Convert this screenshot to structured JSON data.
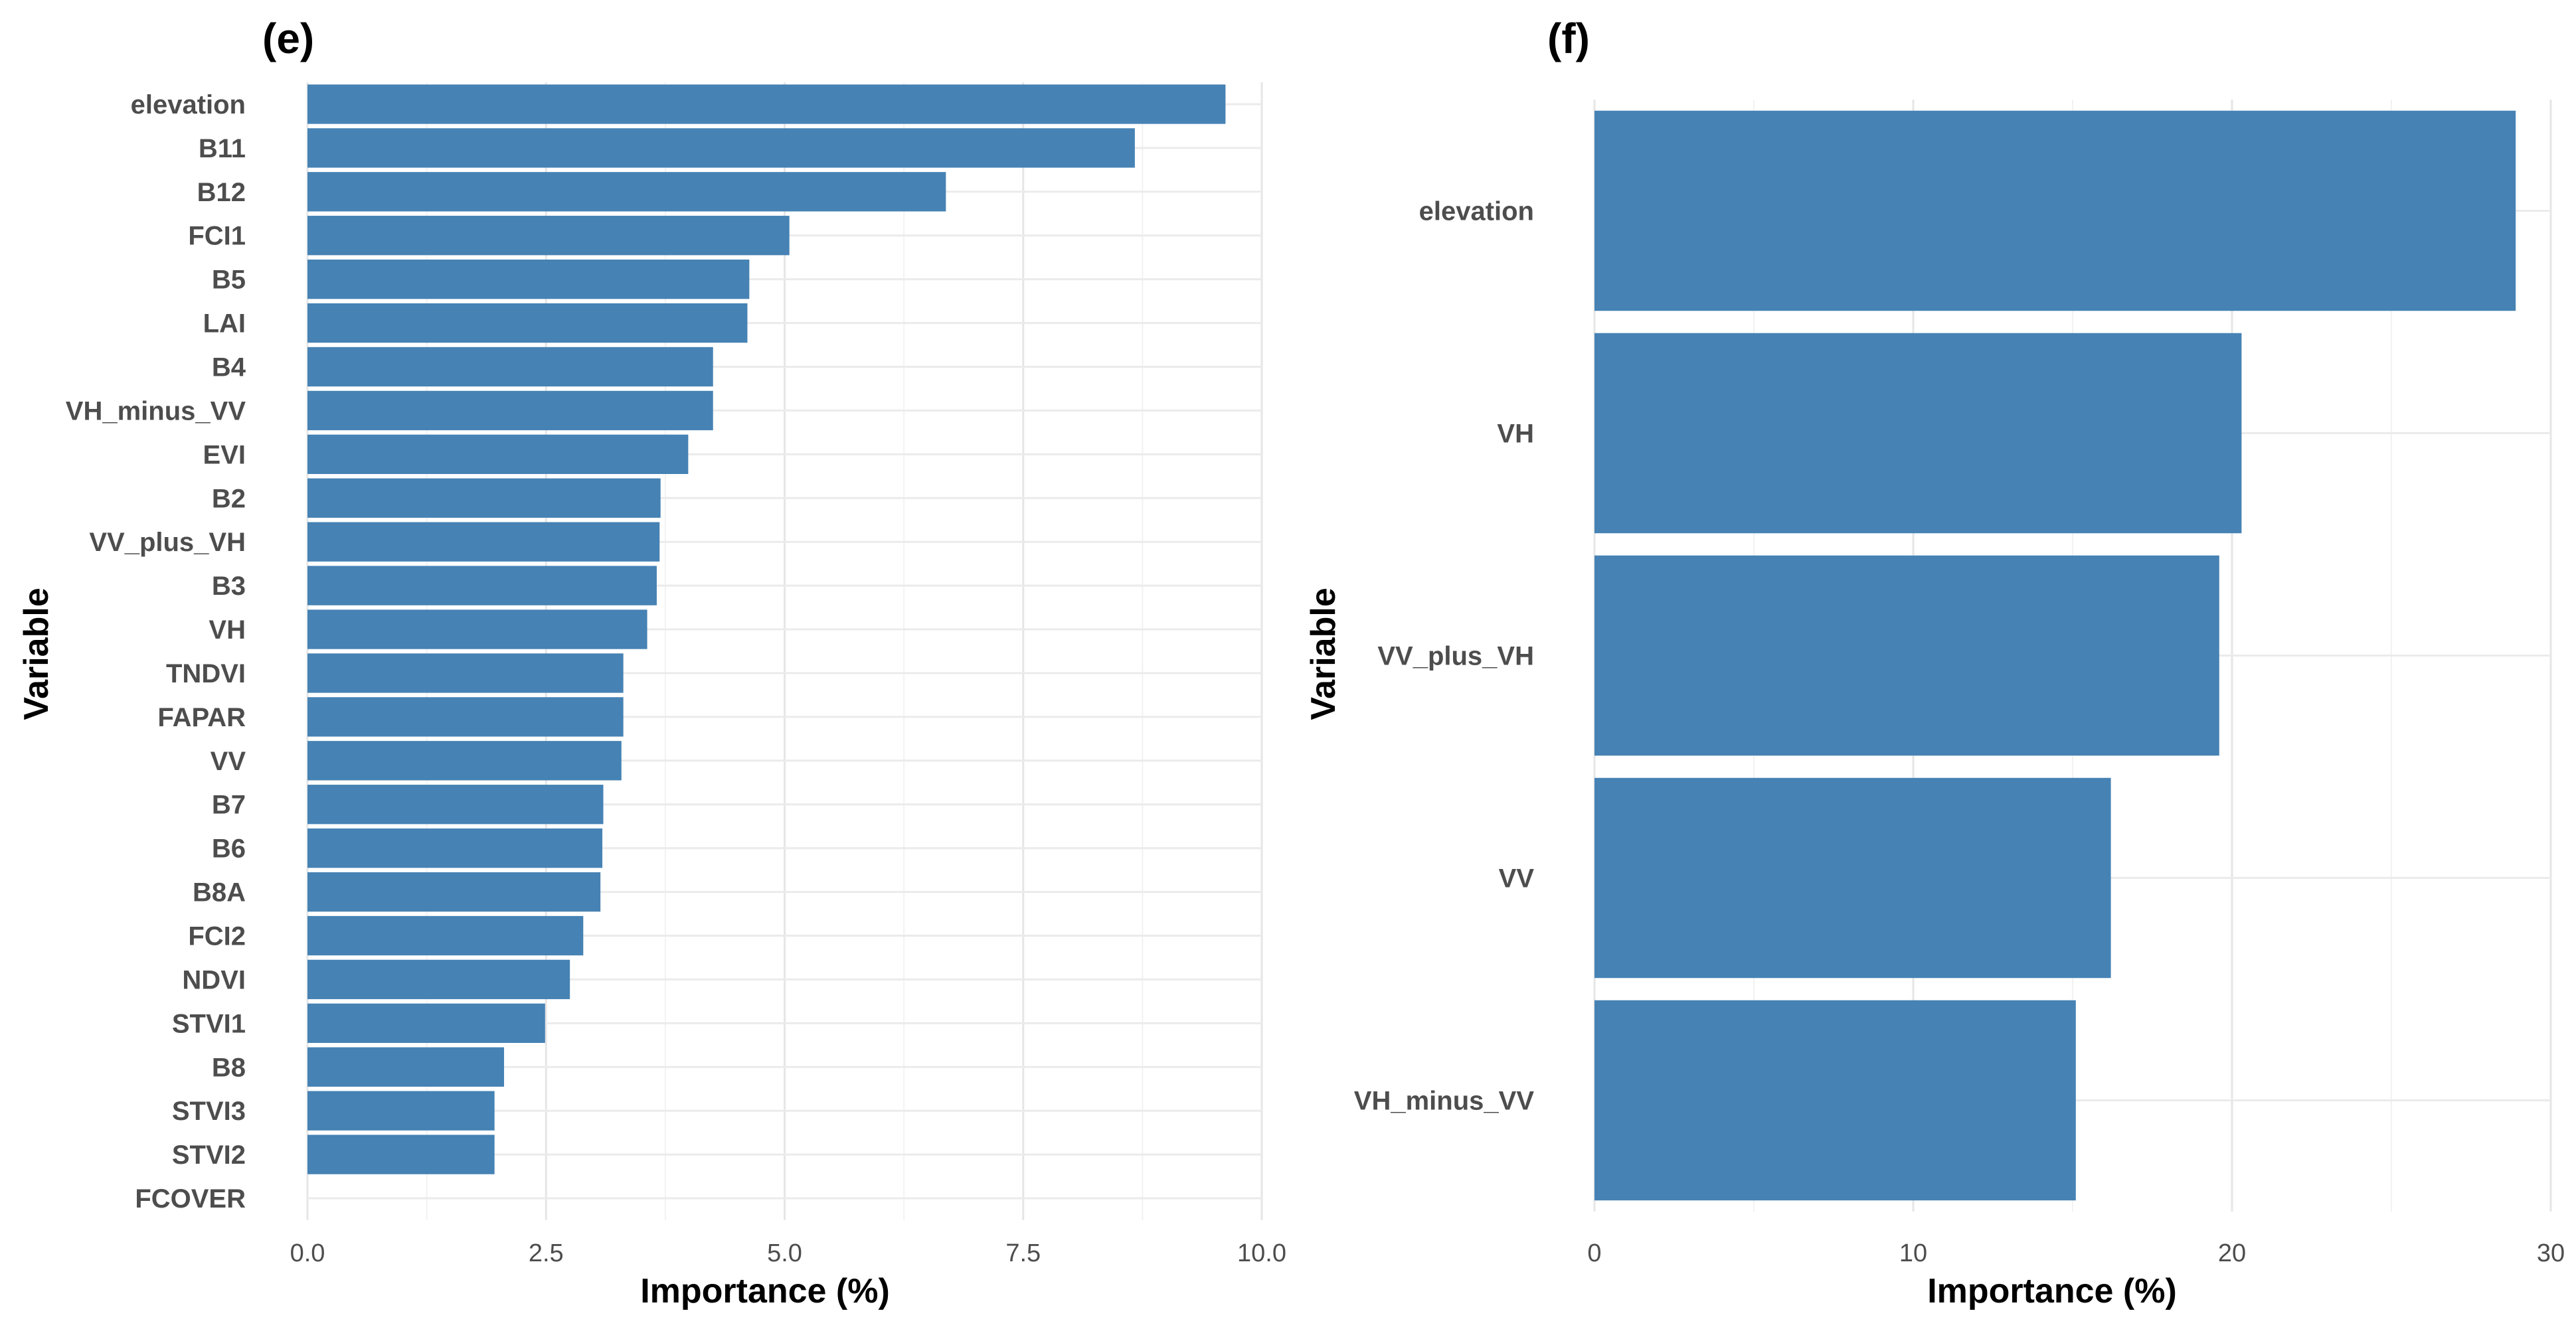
{
  "chart_data": [
    {
      "type": "bar",
      "orientation": "horizontal",
      "panel_label": "(e)",
      "xlabel": "Importance (%)",
      "ylabel": "Variable",
      "xlim": [
        0,
        10
      ],
      "xticks": [
        "0.0",
        "2.5",
        "5.0",
        "7.5",
        "10.0"
      ],
      "grid": true,
      "color": "#4682B4",
      "categories": [
        "elevation",
        "B11",
        "B12",
        "FCI1",
        "B5",
        "LAI",
        "B4",
        "VH_minus_VV",
        "EVI",
        "B2",
        "VV_plus_VH",
        "B3",
        "VH",
        "TNDVI",
        "FAPAR",
        "VV",
        "B7",
        "B6",
        "B8A",
        "FCI2",
        "NDVI",
        "STVI1",
        "B8",
        "STVI3",
        "STVI2",
        "FCOVER"
      ],
      "values": [
        9.62,
        8.67,
        6.69,
        5.05,
        4.63,
        4.61,
        4.25,
        4.25,
        3.99,
        3.7,
        3.69,
        3.66,
        3.56,
        3.31,
        3.31,
        3.29,
        3.1,
        3.09,
        3.07,
        2.89,
        2.75,
        2.49,
        2.06,
        1.96,
        1.96,
        0.0
      ]
    },
    {
      "type": "bar",
      "orientation": "horizontal",
      "panel_label": "(f)",
      "xlabel": "Importance (%)",
      "ylabel": "Variable",
      "xlim": [
        0,
        30
      ],
      "xticks": [
        "0",
        "10",
        "20",
        "30"
      ],
      "grid": true,
      "color": "#4682B4",
      "categories": [
        "elevation",
        "VH",
        "VV_plus_VH",
        "VV",
        "VH_minus_VV"
      ],
      "values": [
        28.9,
        20.3,
        19.6,
        16.2,
        15.1
      ]
    }
  ]
}
